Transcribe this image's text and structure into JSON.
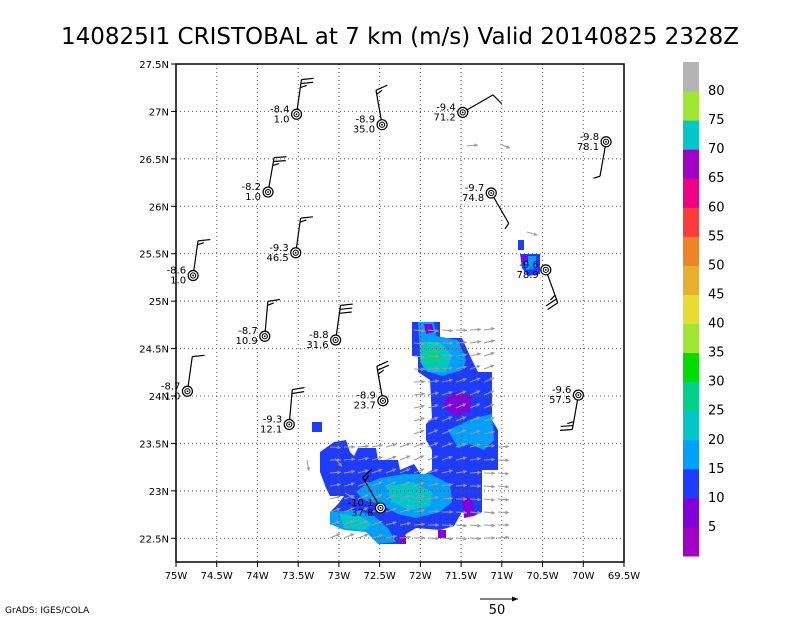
{
  "title": "140825I1 CRISTOBAL at 7 km (m/s) Valid 20140825 2328Z",
  "credit": "GrADS: IGES/COLA",
  "reference_vector": {
    "label": "50"
  },
  "chart_data": {
    "type": "map",
    "title": "140825I1 CRISTOBAL at 7 km (m/s) Valid 20140825 2328Z",
    "xlim": [
      -75.0,
      -69.5
    ],
    "ylim": [
      22.25,
      27.5
    ],
    "x_ticks": [
      {
        "v": -75.0,
        "label": "75W"
      },
      {
        "v": -74.5,
        "label": "74.5W"
      },
      {
        "v": -74.0,
        "label": "74W"
      },
      {
        "v": -73.5,
        "label": "73.5W"
      },
      {
        "v": -73.0,
        "label": "73W"
      },
      {
        "v": -72.5,
        "label": "72.5W"
      },
      {
        "v": -72.0,
        "label": "72W"
      },
      {
        "v": -71.5,
        "label": "71.5W"
      },
      {
        "v": -71.0,
        "label": "71W"
      },
      {
        "v": -70.5,
        "label": "70.5W"
      },
      {
        "v": -70.0,
        "label": "70W"
      },
      {
        "v": -69.5,
        "label": "69.5W"
      }
    ],
    "y_ticks": [
      {
        "v": 22.5,
        "label": "22.5N"
      },
      {
        "v": 23.0,
        "label": "23N"
      },
      {
        "v": 23.5,
        "label": "23.5N"
      },
      {
        "v": 24.0,
        "label": "24N"
      },
      {
        "v": 24.5,
        "label": "24.5N"
      },
      {
        "v": 25.0,
        "label": "25N"
      },
      {
        "v": 25.5,
        "label": "25.5N"
      },
      {
        "v": 26.0,
        "label": "26N"
      },
      {
        "v": 26.5,
        "label": "26.5N"
      },
      {
        "v": 27.0,
        "label": "27N"
      },
      {
        "v": 27.5,
        "label": "27.5N"
      }
    ],
    "grid": true,
    "colorbar": {
      "placement": "right",
      "labels": [
        "5",
        "10",
        "15",
        "20",
        "25",
        "30",
        "35",
        "40",
        "45",
        "50",
        "55",
        "60",
        "65",
        "70",
        "75",
        "80"
      ],
      "colors": [
        "#a000c8",
        "#8200dc",
        "#1e3cff",
        "#00a0ff",
        "#00c8c8",
        "#00d28c",
        "#00dc00",
        "#a0e632",
        "#e6dc32",
        "#e6af2d",
        "#f08228",
        "#fa3c3c",
        "#f00082",
        "#a000c8",
        "#00c8c8",
        "#a0e632",
        "#b4b4b4"
      ]
    },
    "stations": [
      {
        "lon": -73.52,
        "lat": 26.97,
        "temp": "-8.4",
        "rh": "1.0",
        "dir": 8,
        "spd": 25
      },
      {
        "lon": -72.47,
        "lat": 26.86,
        "temp": "-8.9",
        "rh": "35.0",
        "dir": 350,
        "spd": 15
      },
      {
        "lon": -71.48,
        "lat": 26.99,
        "temp": "-9.4",
        "rh": "71.2",
        "dir": 60,
        "spd": 10
      },
      {
        "lon": -69.72,
        "lat": 26.68,
        "temp": "-9.8",
        "rh": "78.1",
        "dir": 190,
        "spd": 5
      },
      {
        "lon": -73.87,
        "lat": 26.15,
        "temp": "-8.2",
        "rh": "1.0",
        "dir": 10,
        "spd": 25
      },
      {
        "lon": -71.13,
        "lat": 26.14,
        "temp": "-9.7",
        "rh": "74.8",
        "dir": 150,
        "spd": 5
      },
      {
        "lon": -73.53,
        "lat": 25.51,
        "temp": "-9.3",
        "rh": "46.5",
        "dir": 8,
        "spd": 15
      },
      {
        "lon": -74.79,
        "lat": 25.27,
        "temp": "-8.6",
        "rh": "1.0",
        "dir": 8,
        "spd": 15
      },
      {
        "lon": -70.46,
        "lat": 25.33,
        "temp": "-9.6",
        "rh": "78.9",
        "dir": 160,
        "spd": 25
      },
      {
        "lon": -73.91,
        "lat": 24.63,
        "temp": "-8.7",
        "rh": "10.9",
        "dir": 5,
        "spd": 15
      },
      {
        "lon": -73.04,
        "lat": 24.59,
        "temp": "-8.8",
        "rh": "31.6",
        "dir": 8,
        "spd": 30
      },
      {
        "lon": -74.86,
        "lat": 24.05,
        "temp": "-8.7",
        "rh": "1.0",
        "dir": 8,
        "spd": 10
      },
      {
        "lon": -72.46,
        "lat": 23.95,
        "temp": "-8.9",
        "rh": "23.7",
        "dir": 350,
        "spd": 25
      },
      {
        "lon": -70.06,
        "lat": 24.01,
        "temp": "-9.6",
        "rh": "57.5",
        "dir": 190,
        "spd": 25
      },
      {
        "lon": -73.61,
        "lat": 23.7,
        "temp": "-9.3",
        "rh": "12.1",
        "dir": 5,
        "spd": 20
      },
      {
        "lon": -72.49,
        "lat": 22.82,
        "temp": "-10.1",
        "rh": "37.8",
        "dir": 330,
        "spd": 15
      }
    ]
  }
}
